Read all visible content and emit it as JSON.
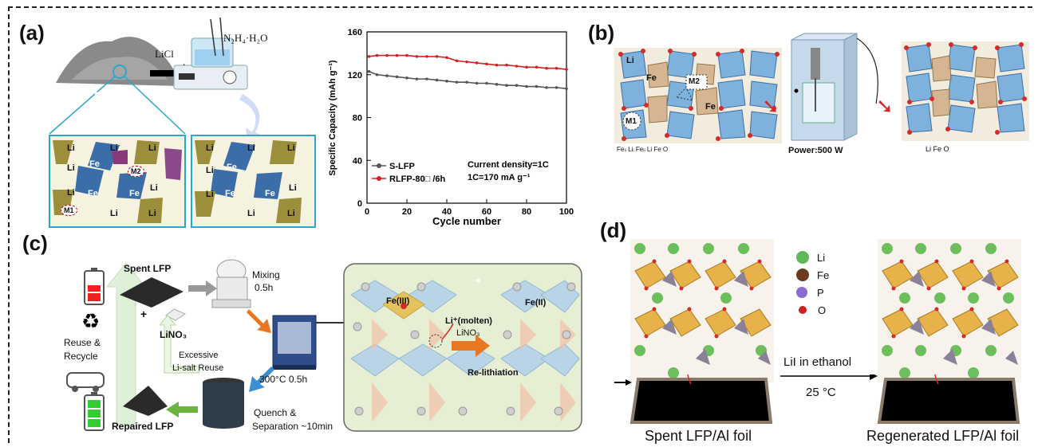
{
  "panels": {
    "a": {
      "letter": "(a)",
      "reagent_licl": "LiCl",
      "reagent_hydrazine": "N₂H₄·H₂O",
      "sample_label": "S-LFP",
      "crystal_left_sites": [
        "Li",
        "Li",
        "Li",
        "Li",
        "Fe",
        "Fe",
        "Fe",
        "Li",
        "Li",
        "Li",
        "Li"
      ],
      "site_m1": "M1",
      "site_m2": "M2",
      "crystal_right_sites": [
        "Li",
        "Li",
        "Li",
        "Li",
        "Fe",
        "Fe",
        "Fe",
        "Li",
        "Li",
        "Li",
        "Li"
      ]
    },
    "b": {
      "letter": "(b)",
      "site_m1": "M1",
      "site_m2": "M2",
      "left_legend": "Feₗᵢ  Liᵢ  Feᵢᵢ  Li  Fe  O",
      "power_label": "Power:500 W",
      "right_legend": "Li  Fe  O",
      "fe_label": "Fe",
      "li_label": "Li"
    },
    "c": {
      "letter": "(c)",
      "spent_lfp": "Spent LFP",
      "plus": "+",
      "lino3": "LiNO₃",
      "mixing": "Mixing",
      "mixing_time": "0.5h",
      "reuse_recycle": "Reuse & Recycle",
      "excessive": "Excessive",
      "li_salt_reuse": "Li-salt Reuse",
      "heating": "300°C 0.5h",
      "repaired_lfp": "Repaired LFP",
      "quench": "Quench &",
      "separation": "Separation  ~10min",
      "fe3": "Fe(III)",
      "fe2": "Fe(II)",
      "li_molten": "Li⁺(molten)",
      "lino3_inset": "LiNO₃",
      "relithiation": "Re-lithiation"
    },
    "d": {
      "letter": "(d)",
      "legend": [
        {
          "label": "Li",
          "color": "#5fb85a"
        },
        {
          "label": "Fe",
          "color": "#6b3a1f"
        },
        {
          "label": "P",
          "color": "#8b6bd0"
        },
        {
          "label": "O",
          "color": "#d0201f"
        }
      ],
      "reaction_top": "LiI in ethanol",
      "reaction_bottom": "25 °C",
      "spent_caption": "Spent LFP/Al foil",
      "regen_caption": "Regenerated LFP/Al foil"
    }
  },
  "chart_data": {
    "type": "line",
    "xlabel": "Cycle number",
    "ylabel": "Specific Capacity (mAh g⁻¹)",
    "xlim": [
      0,
      100
    ],
    "ylim": [
      0,
      160
    ],
    "xticks": [
      0,
      20,
      40,
      60,
      80,
      100
    ],
    "yticks": [
      0,
      40,
      80,
      120,
      160
    ],
    "annotation_line1": "Current density=1C",
    "annotation_line2": "1C=170 mA g⁻¹",
    "legend_position": "bottom-left",
    "series": [
      {
        "name": "S-LFP",
        "color": "#555555",
        "x": [
          1,
          5,
          10,
          15,
          20,
          25,
          30,
          35,
          40,
          45,
          50,
          55,
          60,
          65,
          70,
          75,
          80,
          85,
          90,
          95,
          100
        ],
        "values": [
          123,
          120,
          119,
          118,
          117,
          116,
          116,
          115,
          114,
          113,
          113,
          112,
          112,
          111,
          110,
          110,
          109,
          109,
          108,
          108,
          107
        ]
      },
      {
        "name": "RLFP-80□ /6h",
        "color": "#d42020",
        "x": [
          1,
          5,
          10,
          15,
          20,
          25,
          30,
          35,
          40,
          45,
          50,
          55,
          60,
          65,
          70,
          75,
          80,
          85,
          90,
          95,
          100
        ],
        "values": [
          137,
          138,
          138,
          138,
          138,
          137,
          137,
          137,
          136,
          133,
          132,
          131,
          130,
          129,
          129,
          128,
          127,
          127,
          126,
          126,
          125
        ]
      }
    ]
  }
}
